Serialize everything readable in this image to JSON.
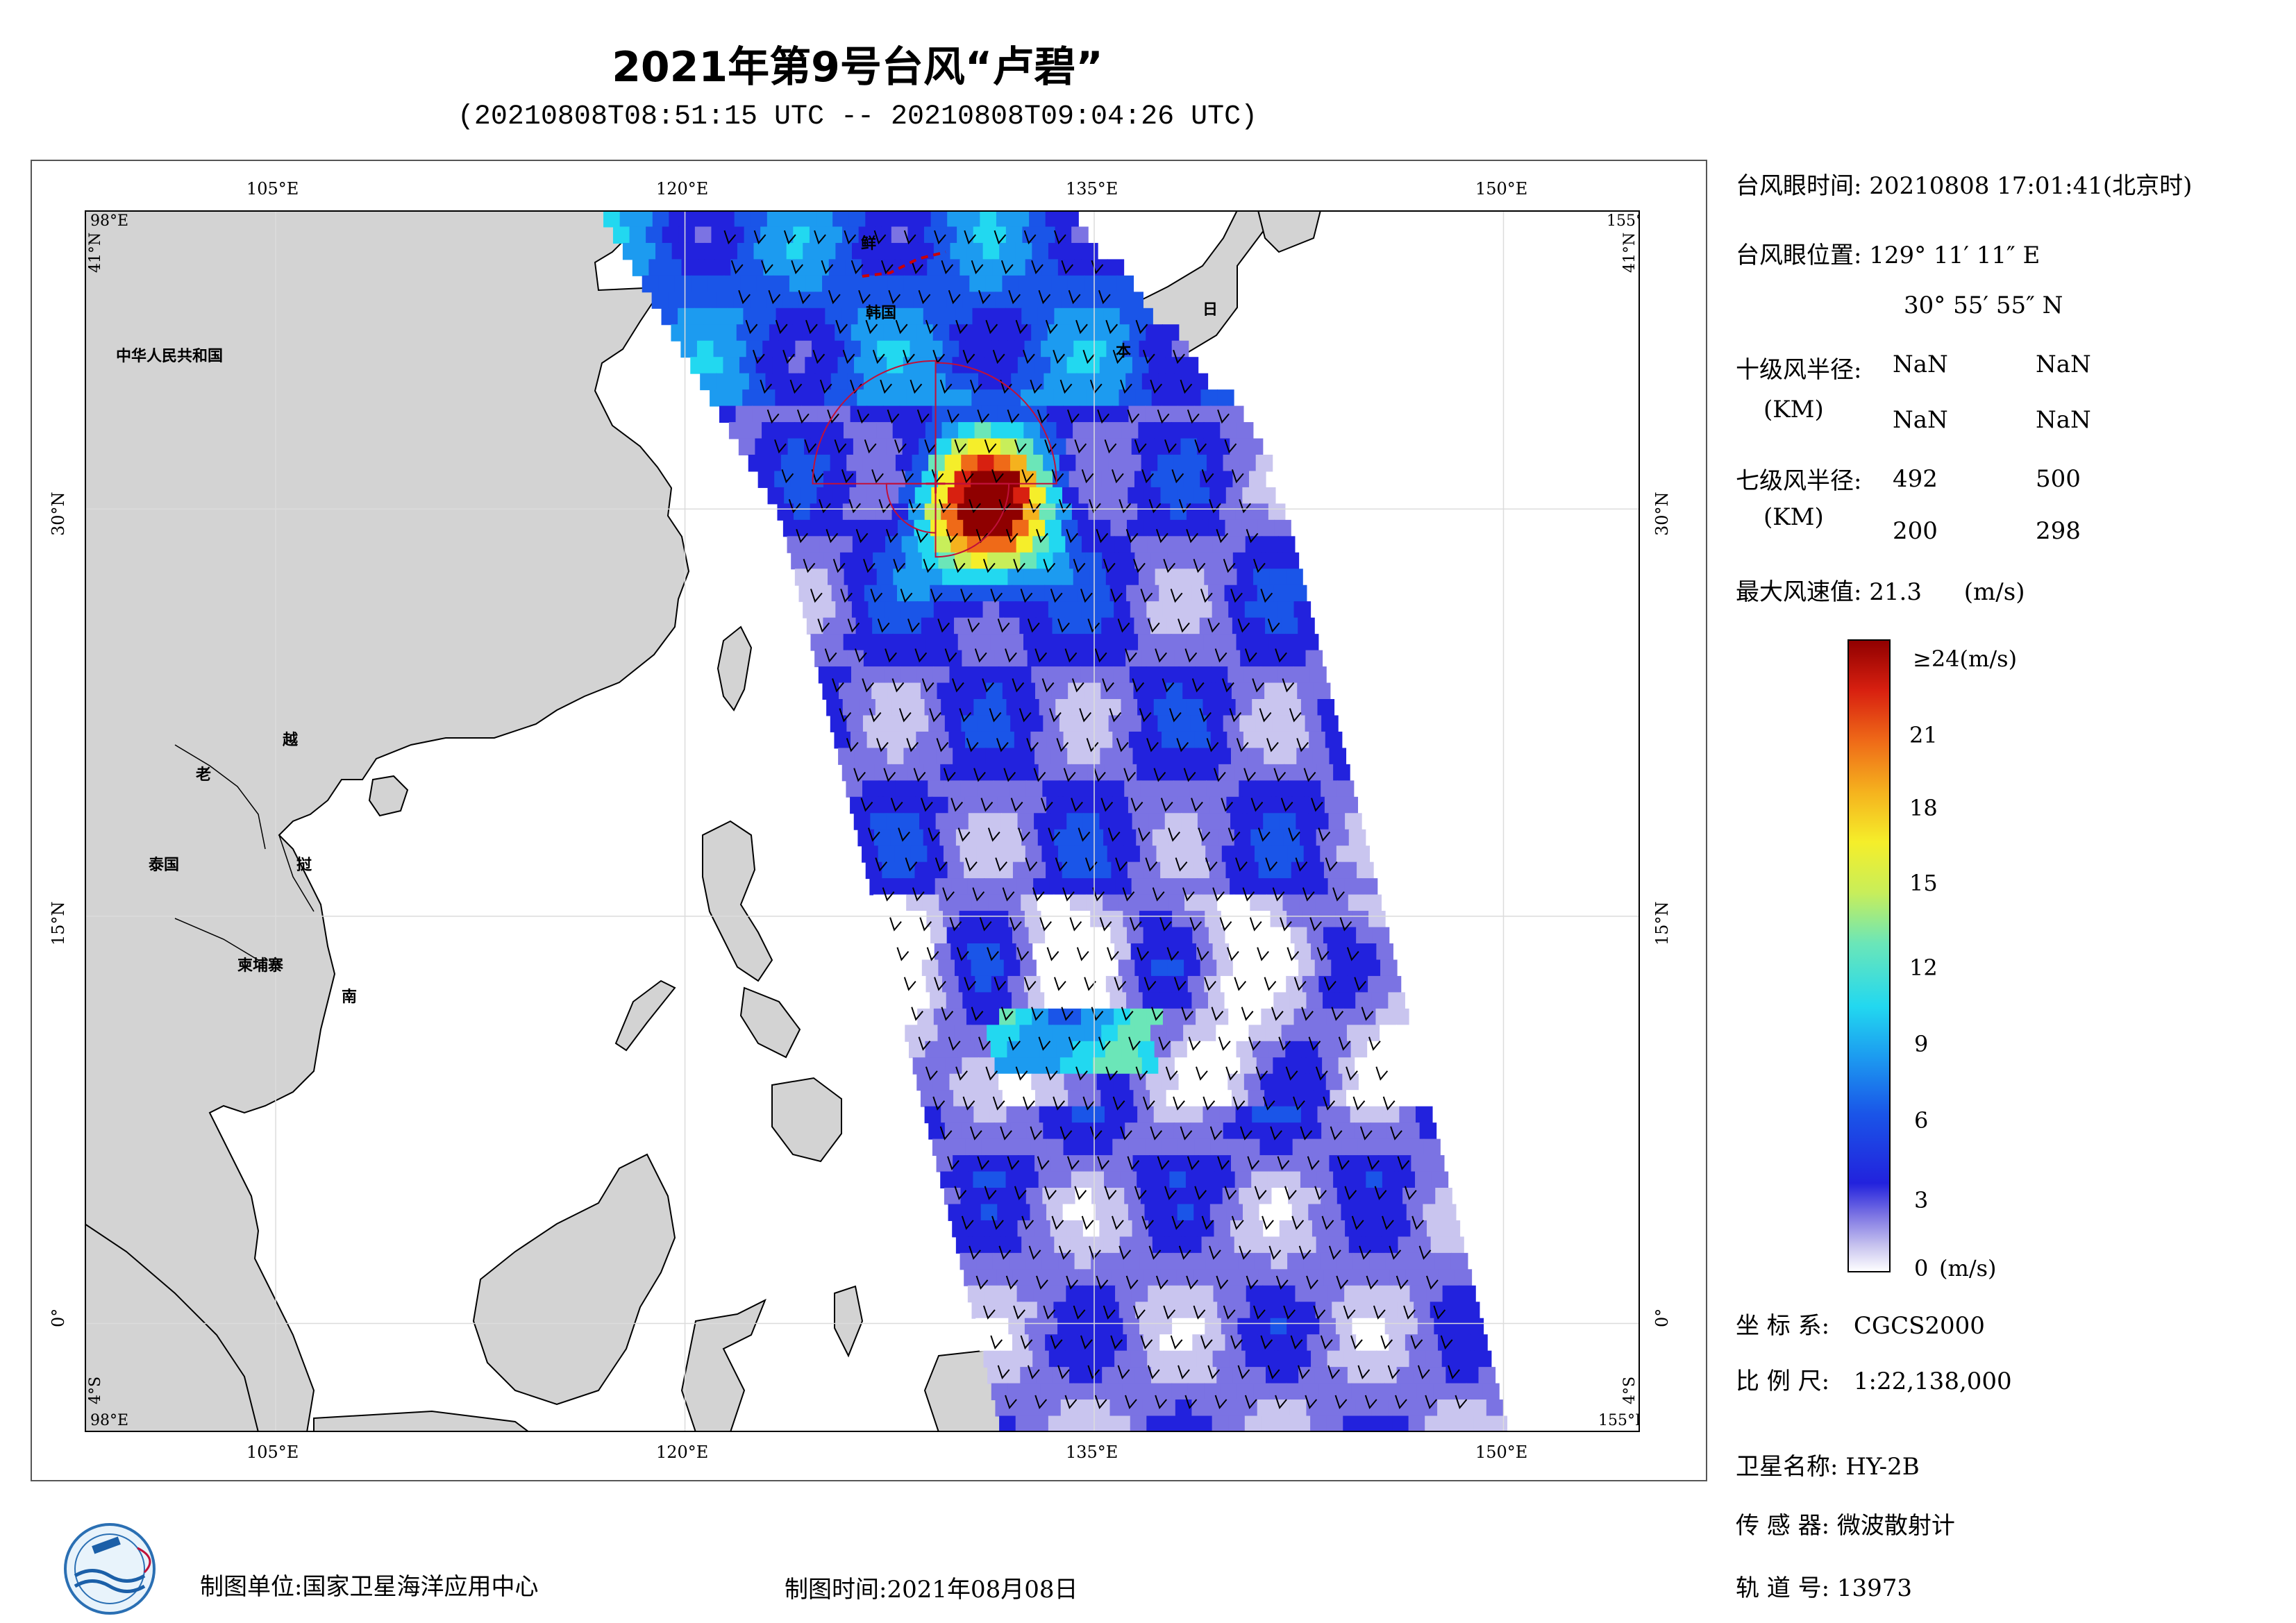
{
  "header": {
    "title": "2021年第9号台风“卢碧”",
    "subtitle": "(20210808T08:51:15 UTC -- 20210808T09:04:26 UTC)"
  },
  "map": {
    "lon_range": [
      98,
      155
    ],
    "lat_range": [
      -4,
      41
    ],
    "lon_ticks": [
      "105°E",
      "120°E",
      "135°E",
      "150°E"
    ],
    "lat_ticks": [
      "0°",
      "15°N",
      "30°N"
    ],
    "corner_labels": {
      "top_left_lon": "98°E",
      "top_left_lat": "41°N",
      "top_right_lon": "155°E",
      "top_right_lat": "41°N",
      "bottom_left_lon": "98°E",
      "bottom_left_lat": "4°S",
      "bottom_right_lon": "155°E",
      "bottom_right_lat": "4°S"
    },
    "country_labels": [
      "中华人民共和国",
      "鲜",
      "韩国",
      "日",
      "本",
      "老",
      "越",
      "泰国",
      "挝",
      "柬埔寨",
      "南"
    ],
    "typhoon_eye": {
      "lon": 129.186,
      "lat": 30.932
    },
    "land_color": "#d3d3d3",
    "ocean_color": "#ffffff"
  },
  "info": {
    "eye_time_label": "台风眼时间:",
    "eye_time_value": "20210808 17:01:41(北京时)",
    "eye_pos_label": "台风眼位置:",
    "eye_lon": "129° 11′ 11″ E",
    "eye_lat": "30° 55′ 55″ N",
    "r10_label": "十级风半径:",
    "r10_unit": "(KM)",
    "r10_values": [
      "NaN",
      "NaN",
      "NaN",
      "NaN"
    ],
    "r7_label": "七级风半径:",
    "r7_unit": "(KM)",
    "r7_values": [
      "492",
      "500",
      "200",
      "298"
    ],
    "maxwind_label": "最大风速值:",
    "maxwind_value": "21.3",
    "maxwind_unit": "(m/s)"
  },
  "colorbar": {
    "labels": [
      "≥24(m/s)",
      "21",
      "18",
      "15",
      "12",
      "9",
      "6",
      "3",
      "0"
    ],
    "unit_bottom": "(m/s)",
    "range": [
      0,
      24
    ],
    "colors": [
      "#ffffff",
      "#c9c5ef",
      "#7b73e3",
      "#2222dd",
      "#1a55e8",
      "#1c9bf0",
      "#22d8f0",
      "#6be6b8",
      "#c8ee5a",
      "#f5ee2a",
      "#f5b21e",
      "#ef6a18",
      "#d82010",
      "#8f0000"
    ]
  },
  "meta": {
    "crs_label": "坐 标 系:",
    "crs_value": "CGCS2000",
    "scale_label": "比 例 尺:",
    "scale_value": "1:22,138,000",
    "satellite_label": "卫星名称:",
    "satellite_value": "HY-2B",
    "sensor_label": "传 感 器:",
    "sensor_value": "微波散射计",
    "orbit_label": "轨 道 号:",
    "orbit_value": "13973"
  },
  "footer": {
    "unit_label": "制图单位:",
    "unit_value": "国家卫星海洋应用中心",
    "time_label": "制图时间:",
    "time_value": "2021年08月08日"
  }
}
